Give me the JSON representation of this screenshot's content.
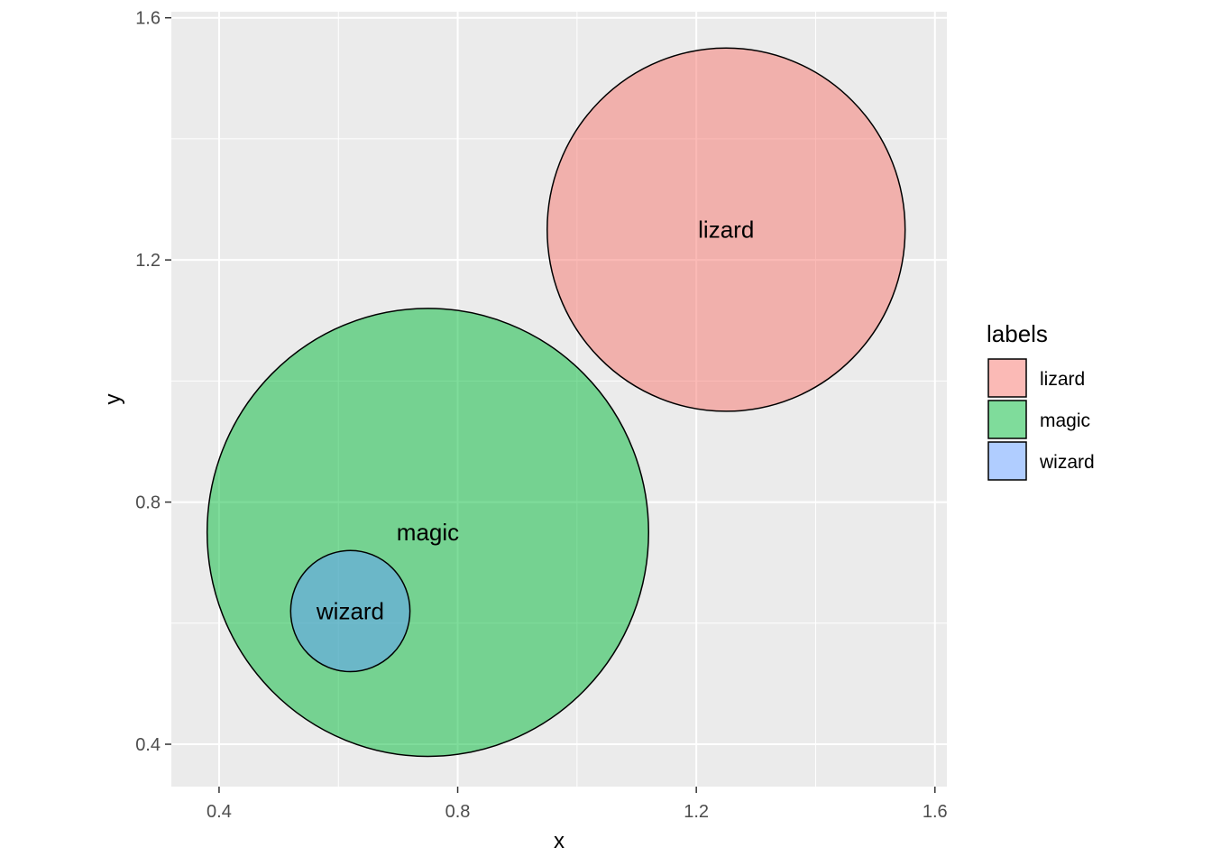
{
  "chart_data": {
    "type": "scatter",
    "subtype": "venn-circles",
    "xlabel": "x",
    "ylabel": "y",
    "xlim": [
      0.32,
      1.62
    ],
    "ylim": [
      0.33,
      1.61
    ],
    "x_ticks": [
      0.4,
      0.8,
      1.2,
      1.6
    ],
    "x_tick_labels": [
      "0.4",
      "0.8",
      "1.2",
      "1.6"
    ],
    "y_ticks": [
      0.4,
      0.8,
      1.2,
      1.6
    ],
    "y_tick_labels": [
      "0.4",
      "0.8",
      "1.2",
      "1.6"
    ],
    "grid": true,
    "background": "#ebebeb",
    "legend": {
      "title": "labels",
      "position": "right",
      "entries": [
        {
          "label": "lizard",
          "color": "#f8766d"
        },
        {
          "label": "magic",
          "color": "#00ba38"
        },
        {
          "label": "wizard",
          "color": "#619cff"
        }
      ]
    },
    "circles": [
      {
        "label": "lizard",
        "x": 1.25,
        "y": 1.25,
        "r": 0.3,
        "color": "#f8766d",
        "opacity": 0.5
      },
      {
        "label": "magic",
        "x": 0.75,
        "y": 0.75,
        "r": 0.37,
        "color": "#00ba38",
        "opacity": 0.5
      },
      {
        "label": "wizard",
        "x": 0.62,
        "y": 0.62,
        "r": 0.1,
        "color": "#619cff",
        "opacity": 0.5
      }
    ]
  }
}
